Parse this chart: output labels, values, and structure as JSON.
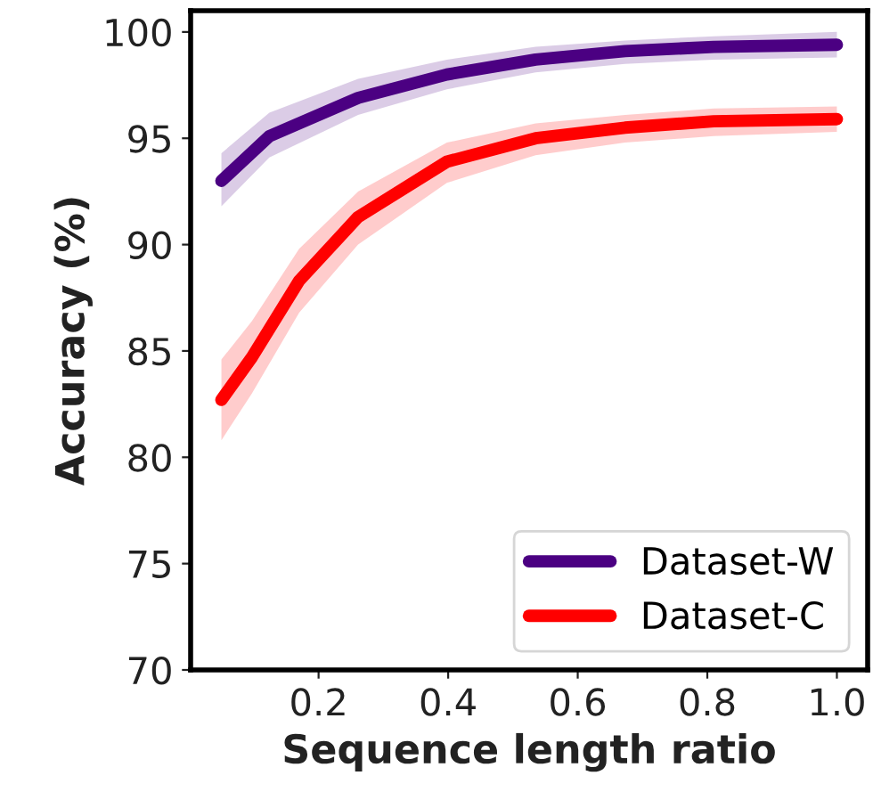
{
  "chart_data": {
    "type": "line",
    "xlabel": "Sequence length ratio",
    "ylabel": "Accuracy (%)",
    "xlim": [
      0.0025,
      1.0475
    ],
    "xticks": [
      {
        "value": 0.2,
        "label": "0.2"
      },
      {
        "value": 0.4,
        "label": "0.4"
      },
      {
        "value": 0.6,
        "label": "0.6"
      },
      {
        "value": 0.8,
        "label": "0.8"
      },
      {
        "value": 1.0,
        "label": "1.0"
      }
    ],
    "ylim": [
      70,
      101
    ],
    "yticks": [
      70,
      75,
      80,
      85,
      90,
      95,
      100
    ],
    "grid": false,
    "legend": "bottom right",
    "marker": "none",
    "line_style": "solid",
    "series": [
      {
        "name": "Dataset-W",
        "color": "#4b0082",
        "x": [
          0.05,
          0.124,
          0.261,
          0.398,
          0.535,
          0.673,
          0.81,
          1.0
        ],
        "values": [
          93.0,
          95.1,
          96.9,
          98.0,
          98.7,
          99.1,
          99.3,
          99.4
        ],
        "lower": [
          91.8,
          94.1,
          96.1,
          97.3,
          98.1,
          98.5,
          98.7,
          98.8
        ],
        "upper": [
          94.3,
          96.2,
          97.8,
          98.7,
          99.3,
          99.6,
          99.8,
          100.0
        ]
      },
      {
        "name": "Dataset-C",
        "color": "#ff0000",
        "x": [
          0.05,
          0.097,
          0.17,
          0.261,
          0.398,
          0.535,
          0.673,
          0.81,
          1.0
        ],
        "values": [
          82.7,
          84.7,
          88.3,
          91.3,
          93.9,
          95.0,
          95.5,
          95.8,
          95.9
        ],
        "lower": [
          80.8,
          83.0,
          86.8,
          90.0,
          92.9,
          94.2,
          94.8,
          95.1,
          95.3
        ],
        "upper": [
          84.6,
          86.4,
          89.8,
          92.5,
          94.8,
          95.7,
          96.1,
          96.4,
          96.5
        ]
      }
    ]
  }
}
